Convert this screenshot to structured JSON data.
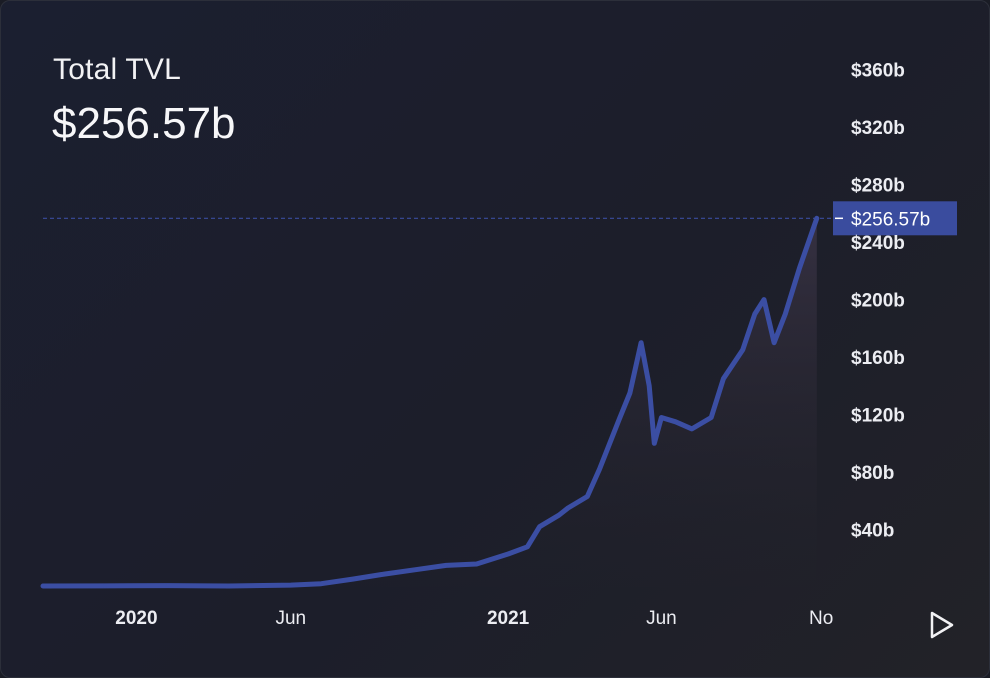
{
  "header": {
    "title": "Total TVL",
    "value": "$256.57b"
  },
  "controls": {
    "play_icon": "play-icon"
  },
  "colors": {
    "line": "#3b4ea3",
    "current_label_bg": "#3a4c9e",
    "text": "#ecedf2"
  },
  "chart_data": {
    "type": "area",
    "title": "Total TVL",
    "xlabel": "",
    "ylabel": "",
    "ylim": [
      0,
      380
    ],
    "y_unit": "billions USD",
    "yticks": [
      40,
      80,
      120,
      160,
      200,
      240,
      280,
      320,
      360
    ],
    "ytick_labels": [
      "$40b",
      "$80b",
      "$120b",
      "$160b",
      "$200b",
      "$240b",
      "$280b",
      "$320b",
      "$360b"
    ],
    "xticks": [
      "2020-01",
      "2020-06",
      "2021-01",
      "2021-06",
      "2021-11"
    ],
    "xtick_labels": [
      "2020",
      "Jun",
      "2021",
      "Jun",
      "No"
    ],
    "xlim": [
      "2019-10",
      "2021-11-15"
    ],
    "current_value": 256.57,
    "current_value_label": "$256.57b",
    "series": [
      {
        "x": [
          "2019-10",
          "2019-12",
          "2020-02",
          "2020-04",
          "2020-06",
          "2020-07",
          "2020-08",
          "2020-09",
          "2020-10",
          "2020-11",
          "2020-12",
          "2021-01",
          "2021-01-20",
          "2021-02",
          "2021-02-20",
          "2021-03",
          "2021-03-20",
          "2021-04",
          "2021-04-20",
          "2021-05-01",
          "2021-05-12",
          "2021-05-20",
          "2021-05-25",
          "2021-06",
          "2021-06-15",
          "2021-07",
          "2021-07-20",
          "2021-08",
          "2021-08-20",
          "2021-09-01",
          "2021-09-10",
          "2021-09-20",
          "2021-10",
          "2021-10-15",
          "2021-11"
        ],
        "y": [
          0.7,
          0.8,
          1.0,
          0.7,
          1.3,
          2.3,
          5.5,
          9.0,
          12.0,
          15.0,
          16.0,
          23.0,
          28.0,
          42.0,
          50.0,
          55.0,
          63.0,
          82.0,
          116.0,
          135.0,
          170.0,
          140.0,
          100.0,
          118.0,
          115.0,
          110.0,
          118.0,
          145.0,
          165.0,
          190.0,
          200.0,
          170.0,
          190.0,
          222.0,
          256.57
        ]
      }
    ],
    "grid": false,
    "legend": "none"
  }
}
